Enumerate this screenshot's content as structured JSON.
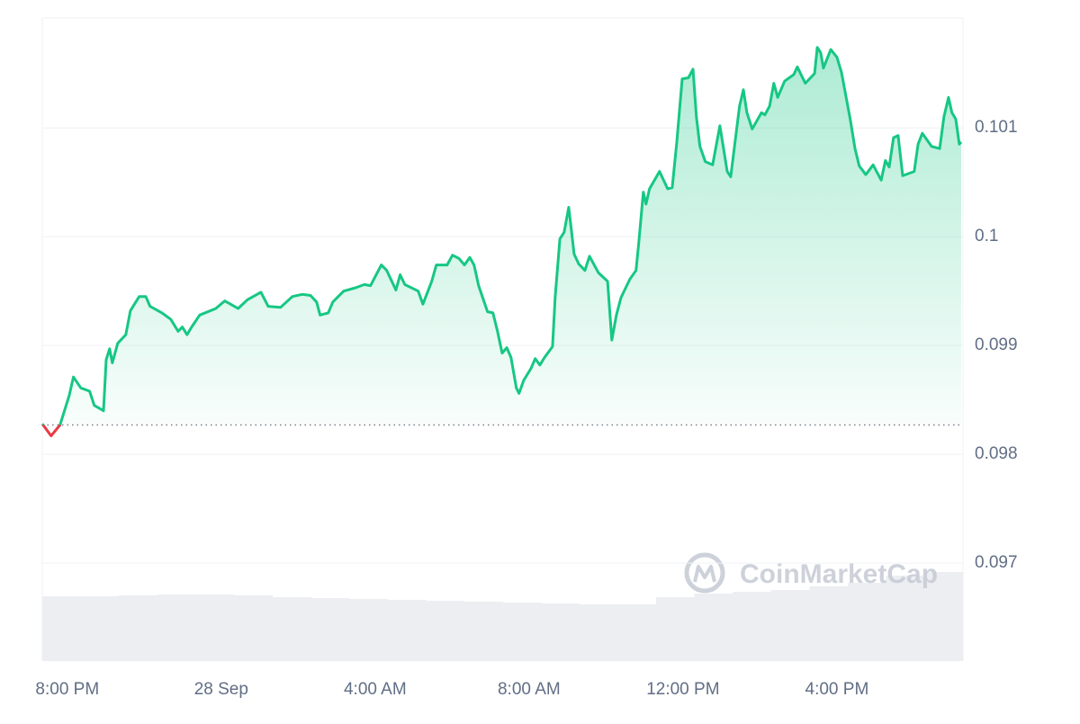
{
  "chart_data": {
    "type": "line",
    "x": [
      -0.65,
      -0.42,
      -0.19,
      0.05,
      0.16,
      0.35,
      0.58,
      0.7,
      0.94,
      1.01,
      1.1,
      1.17,
      1.31,
      1.52,
      1.64,
      1.87,
      2.04,
      2.15,
      2.46,
      2.69,
      2.88,
      2.99,
      3.11,
      3.23,
      3.44,
      3.86,
      4.09,
      4.44,
      4.68,
      5.03,
      5.22,
      5.54,
      5.85,
      6.11,
      6.32,
      6.48,
      6.57,
      6.78,
      6.9,
      7.18,
      7.49,
      7.72,
      7.88,
      8.16,
      8.3,
      8.54,
      8.65,
      8.77,
      9.12,
      9.24,
      9.47,
      9.59,
      9.87,
      10.01,
      10.18,
      10.32,
      10.46,
      10.57,
      10.69,
      10.92,
      11.06,
      11.18,
      11.3,
      11.42,
      11.53,
      11.67,
      11.74,
      11.86,
      12.05,
      12.16,
      12.28,
      12.4,
      12.61,
      12.68,
      12.8,
      12.91,
      13.03,
      13.1,
      13.17,
      13.29,
      13.45,
      13.57,
      13.8,
      14.04,
      14.15,
      14.27,
      14.39,
      14.62,
      14.78,
      14.85,
      14.97,
      15.04,
      15.13,
      15.39,
      15.6,
      15.72,
      15.84,
      15.98,
      16.14,
      16.26,
      16.35,
      16.44,
      16.58,
      16.77,
      16.96,
      17.15,
      17.24,
      17.47,
      17.57,
      17.66,
      17.8,
      18.04,
      18.13,
      18.25,
      18.36,
      18.46,
      18.64,
      18.88,
      18.97,
      19.18,
      19.42,
      19.49,
      19.58,
      19.65,
      19.84,
      20.0,
      20.12,
      20.35,
      20.47,
      20.58,
      20.75,
      20.94,
      21.15,
      21.26,
      21.36,
      21.47,
      21.59,
      21.71,
      22.01,
      22.11,
      22.22,
      22.46,
      22.67,
      22.78,
      22.9,
      22.99,
      23.09,
      23.18,
      23.23
    ],
    "series": [
      {
        "color": "#16c784",
        "down_color": "#ea3943",
        "values": [
          0.09828,
          0.09817,
          0.09827,
          0.09854,
          0.09871,
          0.09861,
          0.09858,
          0.09845,
          0.0984,
          0.09887,
          0.09897,
          0.09884,
          0.09902,
          0.0991,
          0.09932,
          0.09945,
          0.09945,
          0.09936,
          0.0993,
          0.09924,
          0.09913,
          0.09917,
          0.0991,
          0.09917,
          0.09928,
          0.09934,
          0.09941,
          0.09934,
          0.09942,
          0.09949,
          0.09936,
          0.09935,
          0.09945,
          0.09947,
          0.09946,
          0.0994,
          0.09928,
          0.0993,
          0.0994,
          0.0995,
          0.09953,
          0.09956,
          0.09955,
          0.09974,
          0.09969,
          0.09951,
          0.09965,
          0.09956,
          0.0995,
          0.09938,
          0.09959,
          0.09974,
          0.09974,
          0.09983,
          0.0998,
          0.09974,
          0.09981,
          0.09974,
          0.09955,
          0.09931,
          0.0993,
          0.09913,
          0.09893,
          0.09898,
          0.09889,
          0.09861,
          0.09856,
          0.09868,
          0.09879,
          0.09888,
          0.09882,
          0.09889,
          0.09899,
          0.09945,
          0.09998,
          0.10004,
          0.10027,
          0.10006,
          0.09984,
          0.09975,
          0.09969,
          0.09982,
          0.09967,
          0.09959,
          0.09905,
          0.09928,
          0.09944,
          0.09961,
          0.09969,
          0.09994,
          0.10041,
          0.1003,
          0.10044,
          0.1006,
          0.10044,
          0.10045,
          0.10087,
          0.10145,
          0.10146,
          0.10154,
          0.1011,
          0.10083,
          0.10069,
          0.10066,
          0.10102,
          0.1006,
          0.10055,
          0.1012,
          0.10135,
          0.10114,
          0.10099,
          0.10114,
          0.10112,
          0.1012,
          0.10141,
          0.10128,
          0.10143,
          0.10149,
          0.10156,
          0.10141,
          0.1015,
          0.10174,
          0.10169,
          0.10155,
          0.10172,
          0.10165,
          0.10151,
          0.10107,
          0.10081,
          0.10065,
          0.10057,
          0.10066,
          0.10052,
          0.1007,
          0.10064,
          0.10091,
          0.10093,
          0.10056,
          0.1006,
          0.10085,
          0.10095,
          0.10083,
          0.10081,
          0.1011,
          0.10128,
          0.10114,
          0.10108,
          0.10085,
          0.10087
        ]
      }
    ],
    "baseline": 0.09827,
    "xlim": [
      -0.65,
      23.23
    ],
    "xticks": [
      {
        "value": 0,
        "label": "8:00 PM"
      },
      {
        "value": 4,
        "label": "28 Sep"
      },
      {
        "value": 8,
        "label": "4:00 AM"
      },
      {
        "value": 12,
        "label": "8:00 AM"
      },
      {
        "value": 16,
        "label": "12:00 PM"
      },
      {
        "value": 20,
        "label": "4:00 PM"
      }
    ],
    "ylim": [
      0.0961,
      0.10201
    ],
    "yticks": [
      0.097,
      0.098,
      0.099,
      0.1,
      0.101
    ],
    "grid": true,
    "volume": {
      "color": "#eceef2",
      "ylim": [
        0,
        100
      ],
      "values": [
        72,
        72,
        73,
        74,
        74,
        73,
        71,
        70,
        69,
        68,
        67,
        66,
        65,
        64,
        63,
        63,
        71,
        75,
        77,
        79,
        83,
        87,
        95,
        99
      ]
    },
    "watermark": "CoinMarketCap"
  }
}
